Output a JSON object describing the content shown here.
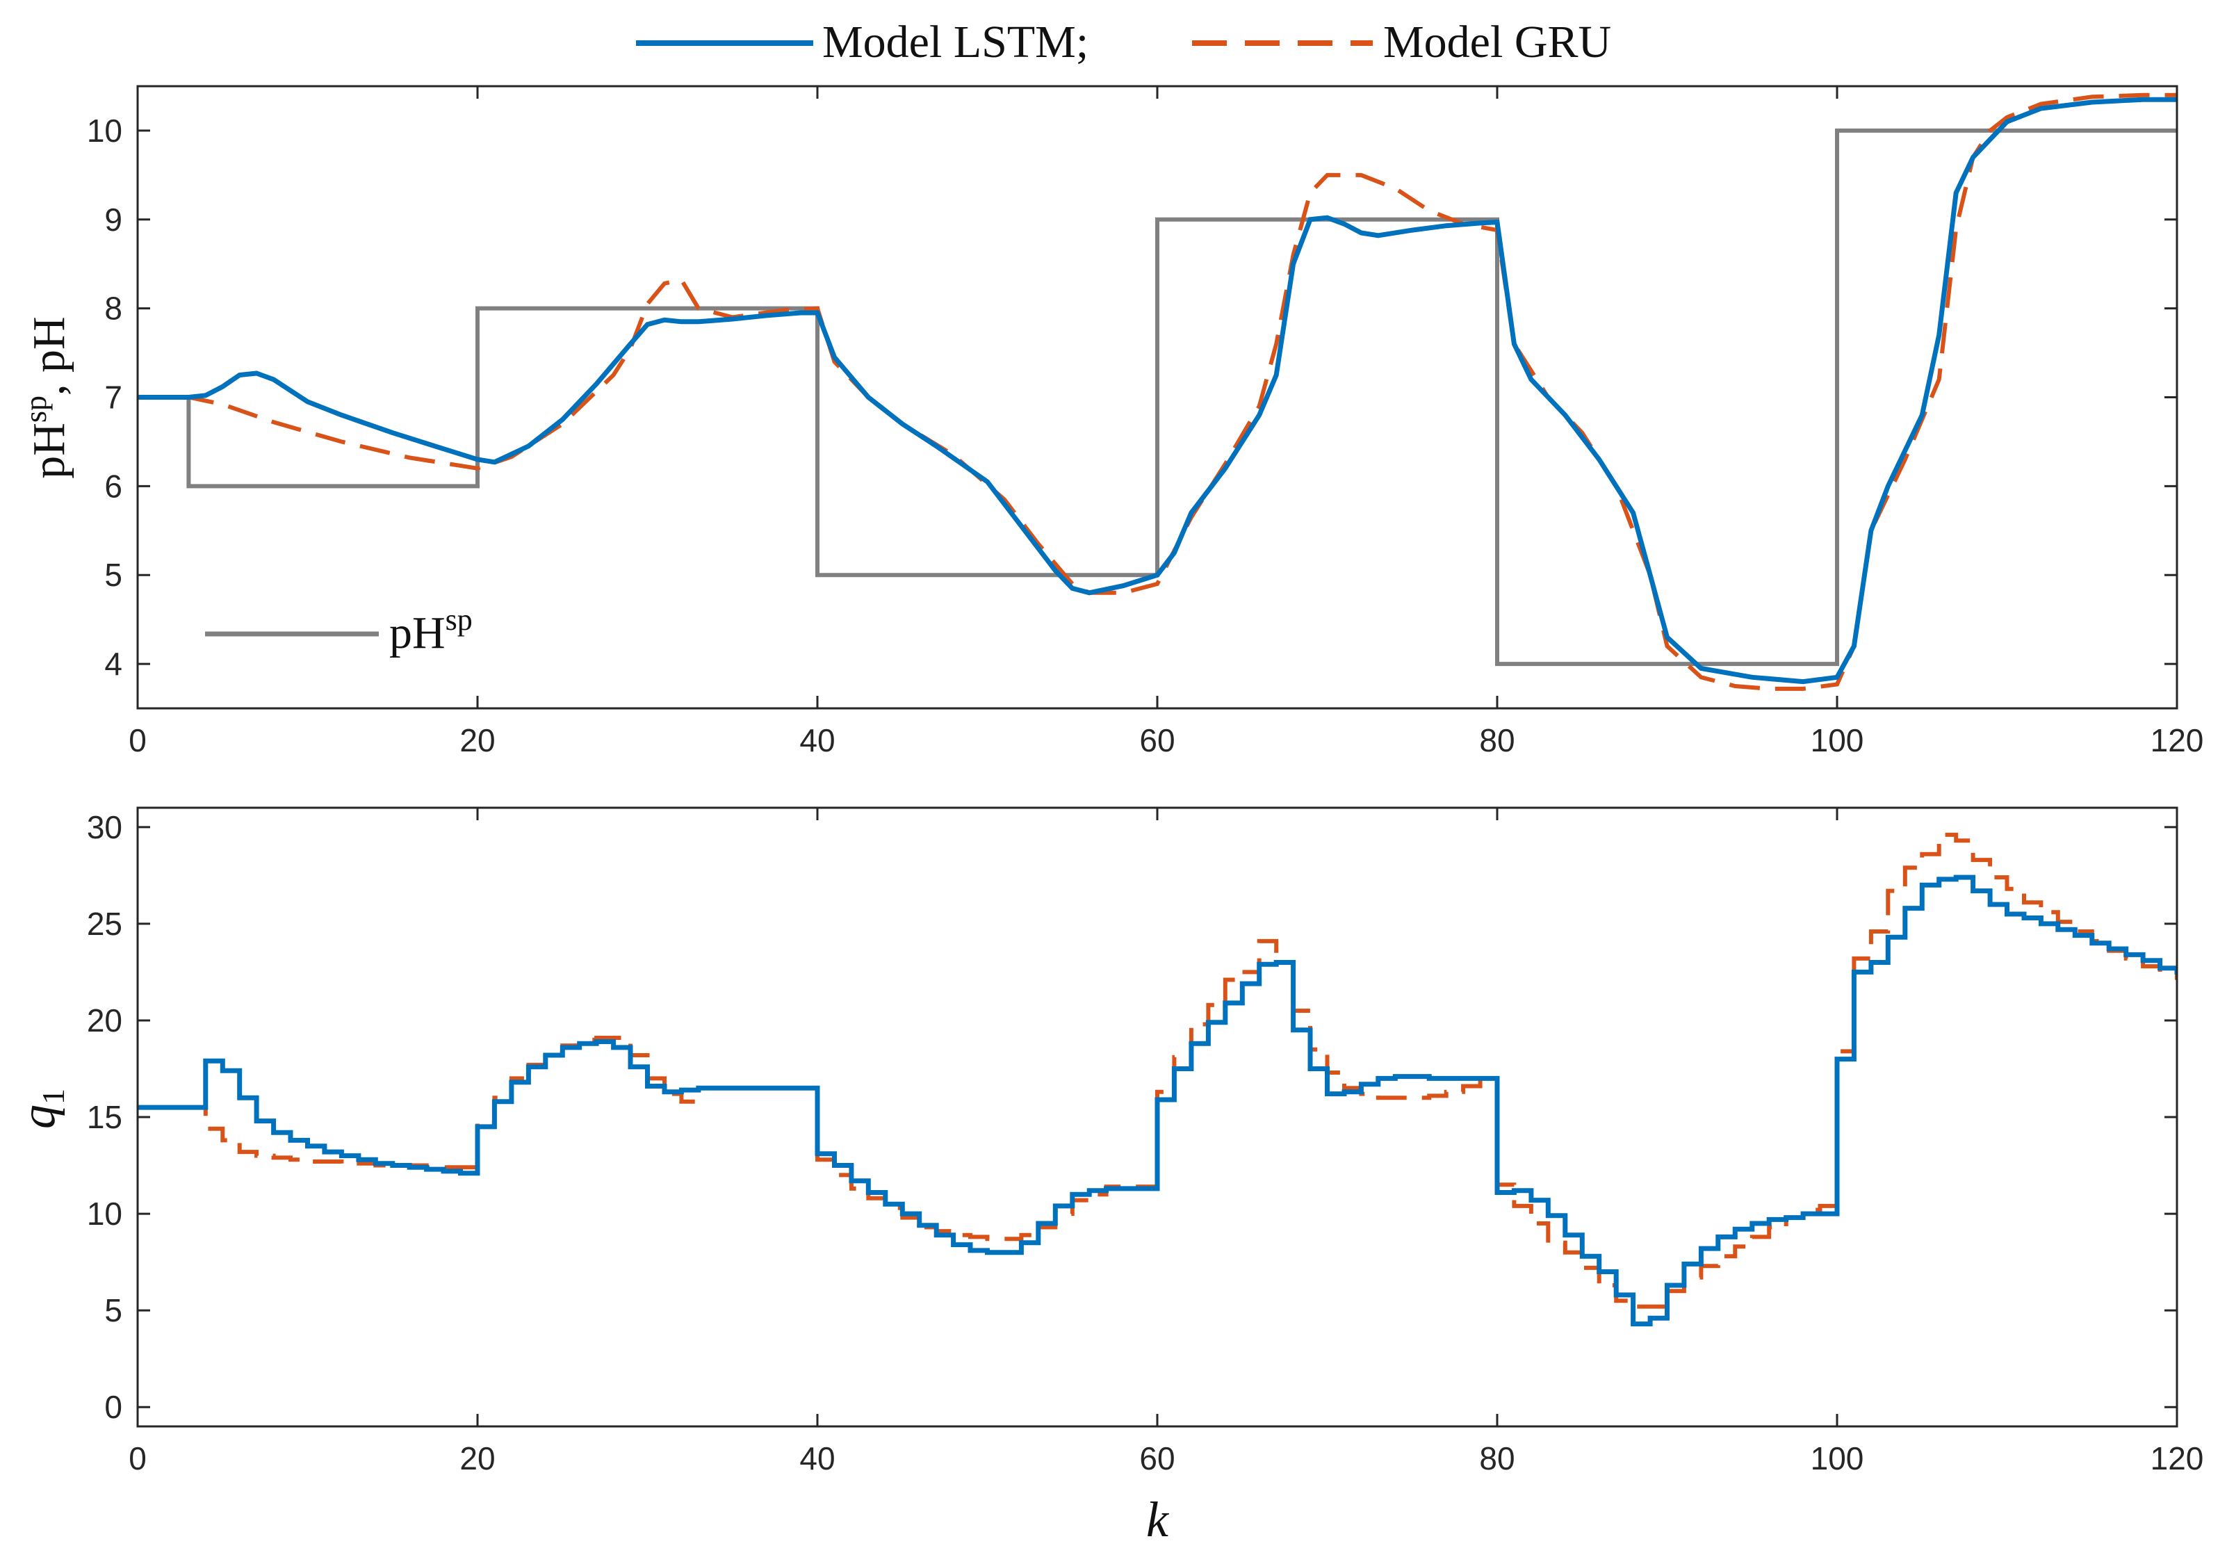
{
  "legend": {
    "lstm_label": "Model LSTM;",
    "gru_label": "Model GRU",
    "setpoint_base": "pH",
    "setpoint_sup": "sp"
  },
  "colors": {
    "lstm": "#0072BD",
    "gru": "#D95319",
    "setpoint": "#808080",
    "axes": "#262626"
  },
  "chart_data": [
    {
      "type": "line",
      "id": "top",
      "ylabel_parts": [
        "pH",
        "sp",
        ", pH"
      ],
      "xlabel": "",
      "xlim": [
        0,
        120
      ],
      "ylim": [
        3.5,
        10.5
      ],
      "xticks": [
        0,
        20,
        40,
        60,
        80,
        100,
        120
      ],
      "yticks": [
        4,
        5,
        6,
        7,
        8,
        9,
        10
      ],
      "series": [
        {
          "name": "pH^sp",
          "key": "setpoint",
          "step": true,
          "x": [
            0,
            3,
            3,
            20,
            20,
            40,
            40,
            60,
            60,
            80,
            80,
            100,
            100,
            120
          ],
          "y": [
            7,
            7,
            6,
            6,
            8,
            8,
            5,
            5,
            9,
            9,
            4,
            4,
            10,
            10
          ]
        },
        {
          "name": "Model LSTM",
          "key": "lstm",
          "x": [
            0,
            3,
            4,
            5,
            6,
            7,
            8,
            10,
            12,
            15,
            18,
            20,
            21,
            23,
            25,
            27,
            29,
            30,
            31,
            32,
            33,
            35,
            37,
            39,
            40,
            41,
            43,
            45,
            47,
            50,
            52,
            54,
            55,
            56,
            58,
            60,
            61,
            62,
            64,
            66,
            67,
            68,
            69,
            70,
            71,
            72,
            73,
            75,
            77,
            79,
            80,
            81,
            82,
            84,
            86,
            88,
            89,
            90,
            92,
            95,
            98,
            100,
            101,
            102,
            103,
            105,
            106,
            107,
            108,
            110,
            112,
            115,
            118,
            120
          ],
          "y": [
            7,
            7,
            7.02,
            7.12,
            7.25,
            7.27,
            7.2,
            6.95,
            6.8,
            6.6,
            6.42,
            6.3,
            6.27,
            6.45,
            6.75,
            7.15,
            7.6,
            7.82,
            7.87,
            7.85,
            7.85,
            7.88,
            7.92,
            7.95,
            7.95,
            7.45,
            7.0,
            6.7,
            6.45,
            6.05,
            5.55,
            5.05,
            4.85,
            4.8,
            4.88,
            5.0,
            5.25,
            5.7,
            6.2,
            6.8,
            7.25,
            8.5,
            9.0,
            9.02,
            8.95,
            8.85,
            8.82,
            8.88,
            8.93,
            8.96,
            8.97,
            7.6,
            7.2,
            6.8,
            6.3,
            5.7,
            5.0,
            4.3,
            3.95,
            3.85,
            3.8,
            3.85,
            4.2,
            5.5,
            6.0,
            6.8,
            7.7,
            9.3,
            9.7,
            10.1,
            10.25,
            10.32,
            10.35,
            10.35
          ]
        },
        {
          "name": "Model GRU",
          "key": "gru",
          "x": [
            0,
            3,
            5,
            8,
            12,
            16,
            20,
            22,
            25,
            28,
            29,
            30,
            31,
            32,
            33,
            35,
            38,
            40,
            41,
            43,
            45,
            48,
            51,
            53,
            55,
            56,
            58,
            60,
            62,
            64,
            66,
            67,
            68,
            69,
            70,
            72,
            74,
            76,
            78,
            80,
            81,
            83,
            85,
            87,
            89,
            90,
            92,
            94,
            96,
            98,
            100,
            101,
            102,
            104,
            106,
            107,
            108,
            109,
            110,
            112,
            115,
            118,
            120
          ],
          "y": [
            7,
            7,
            6.92,
            6.72,
            6.5,
            6.32,
            6.2,
            6.33,
            6.7,
            7.25,
            7.55,
            8.05,
            8.28,
            8.32,
            8.0,
            7.9,
            7.98,
            8.0,
            7.4,
            7.0,
            6.7,
            6.35,
            5.85,
            5.35,
            4.9,
            4.8,
            4.8,
            4.9,
            5.65,
            6.25,
            6.9,
            7.6,
            8.6,
            9.3,
            9.5,
            9.5,
            9.35,
            9.1,
            8.95,
            8.88,
            7.6,
            7.0,
            6.6,
            6.0,
            5.0,
            4.2,
            3.85,
            3.75,
            3.72,
            3.72,
            3.77,
            4.2,
            5.5,
            6.3,
            7.2,
            8.9,
            9.7,
            10.0,
            10.15,
            10.3,
            10.38,
            10.4,
            10.4
          ]
        }
      ]
    },
    {
      "type": "line",
      "id": "bottom",
      "ylabel": "q",
      "ylabel_sub": "1",
      "xlabel": "k",
      "xlim": [
        0,
        120
      ],
      "ylim": [
        -1,
        31
      ],
      "xticks": [
        0,
        20,
        40,
        60,
        80,
        100,
        120
      ],
      "yticks": [
        0,
        5,
        10,
        15,
        20,
        25,
        30
      ],
      "series": [
        {
          "name": "Model LSTM",
          "key": "lstm",
          "step": true,
          "y": [
            15.5,
            15.5,
            15.5,
            15.5,
            17.9,
            17.4,
            16.0,
            14.8,
            14.2,
            13.8,
            13.5,
            13.2,
            13.0,
            12.8,
            12.6,
            12.5,
            12.4,
            12.3,
            12.2,
            12.1,
            14.5,
            15.8,
            16.8,
            17.6,
            18.2,
            18.6,
            18.8,
            18.9,
            18.6,
            17.6,
            16.6,
            16.3,
            16.4,
            16.5,
            16.5,
            16.5,
            16.5,
            16.5,
            16.5,
            16.5,
            13.1,
            12.5,
            11.7,
            11.1,
            10.5,
            10.0,
            9.4,
            8.9,
            8.4,
            8.1,
            8.0,
            8.0,
            8.5,
            9.5,
            10.4,
            11.0,
            11.2,
            11.3,
            11.3,
            11.3,
            15.9,
            17.5,
            18.8,
            19.9,
            20.9,
            21.9,
            22.9,
            23.0,
            19.5,
            17.5,
            16.2,
            16.3,
            16.7,
            17.0,
            17.1,
            17.1,
            17.0,
            17.0,
            17.0,
            17.0,
            11.1,
            11.2,
            10.7,
            9.9,
            8.9,
            7.8,
            7.0,
            5.8,
            4.3,
            4.6,
            6.3,
            7.4,
            8.2,
            8.8,
            9.2,
            9.5,
            9.7,
            9.8,
            10.0,
            10.0,
            18.0,
            22.5,
            23.0,
            24.3,
            25.8,
            27.0,
            27.3,
            27.4,
            26.7,
            26.0,
            25.5,
            25.3,
            25.0,
            24.7,
            24.4,
            24.0,
            23.7,
            23.4,
            23.1,
            22.7,
            22.5
          ]
        },
        {
          "name": "Model GRU",
          "key": "gru",
          "step": true,
          "y": [
            15.5,
            15.5,
            15.5,
            15.5,
            14.4,
            13.8,
            13.2,
            13.0,
            12.9,
            12.8,
            12.7,
            12.7,
            12.6,
            12.6,
            12.5,
            12.5,
            12.5,
            12.4,
            12.4,
            12.4,
            14.7,
            16.0,
            17.0,
            17.7,
            18.3,
            18.7,
            19.0,
            19.1,
            19.1,
            18.2,
            17.0,
            16.2,
            15.8,
            16.5,
            16.5,
            16.5,
            16.5,
            16.5,
            16.5,
            16.5,
            12.8,
            12.0,
            11.3,
            10.8,
            10.3,
            9.8,
            9.3,
            9.1,
            8.9,
            8.8,
            8.7,
            8.7,
            8.9,
            9.3,
            10.0,
            10.7,
            11.0,
            11.4,
            11.4,
            11.4,
            16.3,
            18.1,
            19.8,
            20.8,
            22.1,
            22.5,
            24.1,
            23.0,
            20.5,
            18.5,
            17.3,
            16.5,
            16.2,
            16.0,
            16.0,
            16.0,
            16.1,
            16.3,
            16.6,
            16.9,
            11.5,
            10.4,
            9.5,
            8.5,
            8.0,
            7.2,
            6.3,
            5.5,
            5.2,
            5.2,
            6.0,
            6.7,
            7.3,
            7.8,
            8.3,
            8.8,
            9.3,
            9.8,
            10.2,
            10.4,
            18.4,
            23.2,
            24.6,
            26.7,
            27.9,
            28.6,
            29.6,
            29.3,
            28.3,
            27.4,
            26.8,
            26.1,
            25.6,
            25.1,
            24.6,
            24.1,
            23.6,
            23.2,
            22.8,
            22.5,
            22.2
          ]
        }
      ]
    }
  ]
}
